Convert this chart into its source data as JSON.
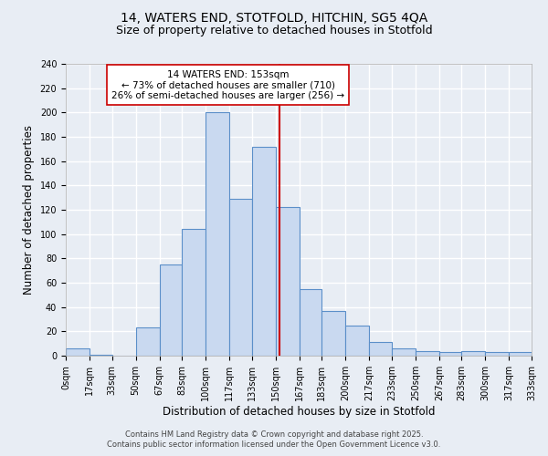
{
  "title1": "14, WATERS END, STOTFOLD, HITCHIN, SG5 4QA",
  "title2": "Size of property relative to detached houses in Stotfold",
  "xlabel": "Distribution of detached houses by size in Stotfold",
  "ylabel": "Number of detached properties",
  "bin_edges": [
    0,
    17,
    33,
    50,
    67,
    83,
    100,
    117,
    133,
    150,
    167,
    183,
    200,
    217,
    233,
    250,
    267,
    283,
    300,
    317,
    333
  ],
  "counts": [
    6,
    1,
    0,
    23,
    75,
    104,
    200,
    129,
    172,
    122,
    55,
    37,
    25,
    11,
    6,
    4,
    3,
    4,
    3,
    3
  ],
  "bar_facecolor": "#c9d9f0",
  "bar_edgecolor": "#5b8fc9",
  "background_color": "#e8edf4",
  "grid_color": "#ffffff",
  "vline_x": 153,
  "vline_color": "#cc0000",
  "annotation_text": "14 WATERS END: 153sqm\n← 73% of detached houses are smaller (710)\n26% of semi-detached houses are larger (256) →",
  "annotation_box_edgecolor": "#cc0000",
  "annotation_box_facecolor": "#ffffff",
  "ylim": [
    0,
    240
  ],
  "yticks": [
    0,
    20,
    40,
    60,
    80,
    100,
    120,
    140,
    160,
    180,
    200,
    220,
    240
  ],
  "footer1": "Contains HM Land Registry data © Crown copyright and database right 2025.",
  "footer2": "Contains public sector information licensed under the Open Government Licence v3.0.",
  "title_fontsize": 10,
  "subtitle_fontsize": 9,
  "tick_fontsize": 7,
  "label_fontsize": 8.5,
  "annotation_fontsize": 7.5,
  "footer_fontsize": 6
}
